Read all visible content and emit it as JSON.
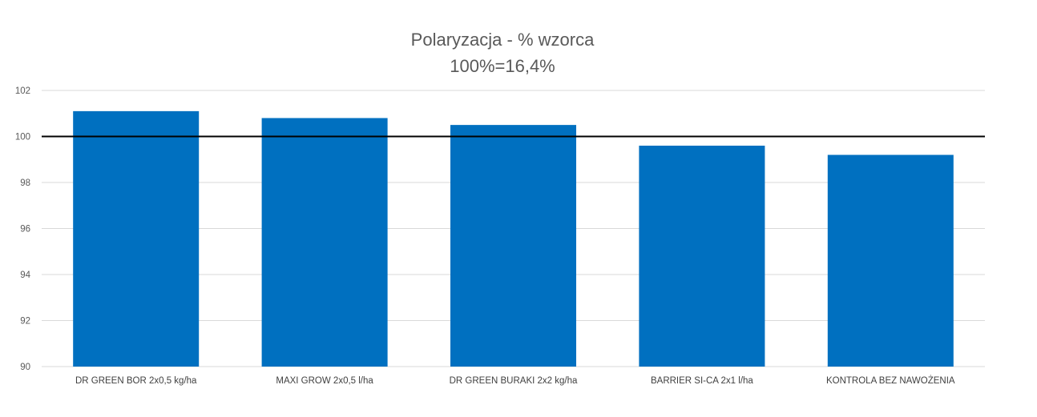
{
  "chart_data": {
    "type": "bar",
    "title": "Polaryzacja - % wzorca",
    "subtitle": "100%=16,4%",
    "categories": [
      "DR GREEN BOR 2x0,5  kg/ha",
      "MAXI GROW 2x0,5  l/ha",
      "DR GREEN BURAKI 2x2  kg/ha",
      "BARRIER SI-CA 2x1  l/ha",
      "KONTROLA BEZ NAWOŻENIA"
    ],
    "values": [
      101.1,
      100.8,
      100.5,
      99.6,
      99.2
    ],
    "ylim": [
      90,
      102
    ],
    "yticks": [
      "90",
      "92",
      "94",
      "96",
      "98",
      "100",
      "102"
    ],
    "reference_line": 100,
    "grid": true,
    "bar_color": "#0070C0",
    "reference_line_color": "#000000"
  }
}
